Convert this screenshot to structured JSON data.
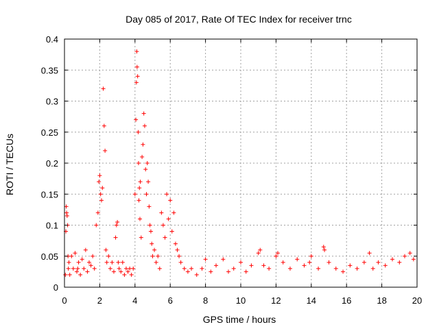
{
  "chart_data": {
    "type": "scatter",
    "title": "Day 085 of 2017, Rate Of TEC Index for receiver trnc",
    "xlabel": "GPS time / hours",
    "ylabel": "ROTI / TECUs",
    "xlim": [
      0,
      20
    ],
    "ylim": [
      0,
      0.4
    ],
    "xticks": [
      0,
      2,
      4,
      6,
      8,
      10,
      12,
      14,
      16,
      18,
      20
    ],
    "yticks": [
      0,
      0.05,
      0.1,
      0.15,
      0.2,
      0.25,
      0.3,
      0.35,
      0.4
    ],
    "grid": true,
    "marker": "+",
    "series_color": "#ff0000",
    "series": [
      {
        "name": "ROTI",
        "x": [
          0.05,
          0.08,
          0.1,
          0.12,
          0.15,
          0.18,
          0.2,
          0.22,
          0.25,
          0.3,
          0.4,
          0.5,
          0.6,
          0.7,
          0.75,
          0.8,
          0.9,
          1.0,
          1.1,
          1.2,
          1.3,
          1.4,
          1.5,
          1.6,
          1.7,
          1.8,
          1.9,
          1.95,
          2.0,
          2.05,
          2.1,
          2.15,
          2.2,
          2.25,
          2.3,
          2.35,
          2.4,
          2.5,
          2.6,
          2.7,
          2.8,
          2.9,
          2.95,
          3.0,
          3.05,
          3.1,
          3.2,
          3.3,
          3.4,
          3.5,
          3.6,
          3.7,
          3.8,
          3.9,
          4.0,
          4.05,
          4.08,
          4.1,
          4.12,
          4.15,
          4.18,
          4.2,
          4.22,
          4.25,
          4.28,
          4.3,
          4.35,
          4.4,
          4.45,
          4.5,
          4.55,
          4.6,
          4.65,
          4.7,
          4.75,
          4.8,
          4.85,
          4.9,
          4.95,
          5.0,
          5.1,
          5.2,
          5.3,
          5.4,
          5.5,
          5.6,
          5.7,
          5.8,
          5.9,
          6.0,
          6.1,
          6.2,
          6.3,
          6.4,
          6.5,
          6.6,
          6.8,
          7.0,
          7.2,
          7.5,
          7.8,
          8.0,
          8.3,
          8.6,
          9.0,
          9.3,
          9.6,
          10.0,
          10.3,
          10.6,
          11.0,
          11.1,
          11.3,
          11.6,
          12.0,
          12.1,
          12.4,
          12.8,
          13.2,
          13.6,
          13.9,
          14.0,
          14.4,
          14.7,
          14.75,
          15.0,
          15.4,
          15.8,
          16.2,
          16.6,
          17.0,
          17.3,
          17.5,
          17.8,
          18.2,
          18.6,
          19.0,
          19.3,
          19.6,
          19.8
        ],
        "y": [
          0.02,
          0.09,
          0.13,
          0.12,
          0.115,
          0.1,
          0.05,
          0.03,
          0.04,
          0.02,
          0.05,
          0.03,
          0.055,
          0.025,
          0.03,
          0.04,
          0.02,
          0.045,
          0.03,
          0.06,
          0.025,
          0.04,
          0.035,
          0.05,
          0.03,
          0.1,
          0.12,
          0.17,
          0.18,
          0.15,
          0.14,
          0.16,
          0.32,
          0.26,
          0.22,
          0.06,
          0.04,
          0.05,
          0.03,
          0.04,
          0.025,
          0.08,
          0.1,
          0.105,
          0.04,
          0.03,
          0.025,
          0.04,
          0.02,
          0.03,
          0.025,
          0.03,
          0.02,
          0.03,
          0.15,
          0.27,
          0.33,
          0.38,
          0.355,
          0.34,
          0.25,
          0.2,
          0.14,
          0.16,
          0.11,
          0.17,
          0.08,
          0.21,
          0.23,
          0.28,
          0.26,
          0.19,
          0.15,
          0.2,
          0.17,
          0.13,
          0.1,
          0.09,
          0.07,
          0.05,
          0.06,
          0.04,
          0.05,
          0.03,
          0.12,
          0.1,
          0.08,
          0.15,
          0.11,
          0.14,
          0.09,
          0.12,
          0.07,
          0.06,
          0.05,
          0.04,
          0.03,
          0.025,
          0.03,
          0.02,
          0.03,
          0.045,
          0.025,
          0.035,
          0.045,
          0.025,
          0.03,
          0.04,
          0.025,
          0.035,
          0.055,
          0.06,
          0.035,
          0.03,
          0.05,
          0.055,
          0.04,
          0.03,
          0.045,
          0.035,
          0.04,
          0.05,
          0.03,
          0.065,
          0.06,
          0.04,
          0.03,
          0.025,
          0.035,
          0.03,
          0.04,
          0.055,
          0.03,
          0.04,
          0.035,
          0.045,
          0.04,
          0.05,
          0.055,
          0.045
        ]
      }
    ]
  }
}
